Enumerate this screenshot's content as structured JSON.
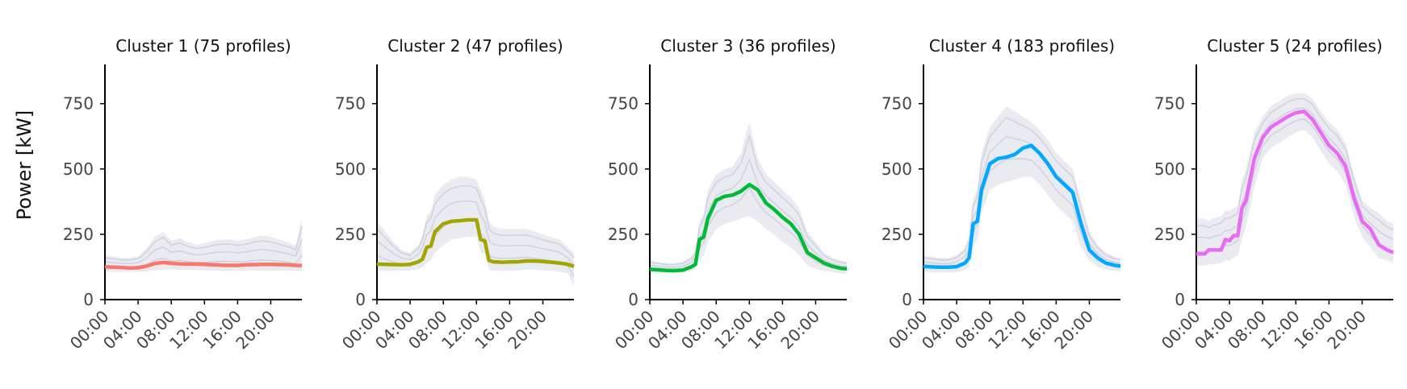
{
  "figure": {
    "ylabel": "Power [kW]"
  },
  "chart_data": [
    {
      "type": "line",
      "title": "Cluster 1 (75 profiles)",
      "color": "#f8766d",
      "x_ticks": [
        "00:00",
        "04:00",
        "08:00",
        "12:00",
        "16:00",
        "20:00"
      ],
      "y_ticks": [
        0,
        250,
        500,
        750
      ],
      "ylim": [
        0,
        900
      ],
      "xlim": [
        0,
        23.75
      ],
      "x_hours": [
        0,
        1,
        2,
        3,
        4,
        5,
        6,
        7,
        8,
        9,
        10,
        11,
        12,
        13,
        14,
        15,
        16,
        17,
        18,
        19,
        20,
        21,
        22,
        23,
        23.75
      ],
      "series": [
        {
          "values": [
            125,
            124,
            123,
            121,
            122,
            128,
            138,
            142,
            139,
            137,
            136,
            136,
            135,
            133,
            132,
            131,
            131,
            133,
            134,
            135,
            135,
            134,
            133,
            131,
            130
          ]
        }
      ],
      "background_band": {
        "lower": [
          105,
          105,
          105,
          105,
          106,
          108,
          112,
          115,
          115,
          114,
          113,
          113,
          112,
          111,
          110,
          110,
          110,
          110,
          111,
          111,
          111,
          111,
          110,
          110,
          109
        ],
        "upper": [
          170,
          165,
          160,
          160,
          165,
          195,
          240,
          260,
          225,
          235,
          220,
          210,
          215,
          225,
          230,
          230,
          225,
          230,
          240,
          245,
          240,
          230,
          220,
          205,
          310
        ]
      }
    },
    {
      "type": "line",
      "title": "Cluster 2 (47 profiles)",
      "color": "#a3a500",
      "x_ticks": [
        "00:00",
        "04:00",
        "08:00",
        "12:00",
        "16:00",
        "20:00"
      ],
      "y_ticks": [
        0,
        250,
        500,
        750
      ],
      "ylim": [
        0,
        900
      ],
      "xlim": [
        0,
        23.75
      ],
      "x_hours": [
        0,
        1,
        2,
        3,
        4,
        5,
        5.5,
        6,
        6.5,
        7,
        8,
        9,
        10,
        11,
        12,
        12.5,
        13,
        13.5,
        14,
        15,
        16,
        17,
        18,
        19,
        20,
        21,
        22,
        23,
        23.75
      ],
      "series": [
        {
          "values": [
            136,
            135,
            134,
            133,
            135,
            145,
            155,
            200,
            205,
            260,
            290,
            300,
            302,
            305,
            305,
            230,
            225,
            150,
            145,
            143,
            144,
            145,
            148,
            148,
            146,
            143,
            140,
            135,
            127
          ]
        }
      ],
      "background_band": {
        "lower": [
          110,
          110,
          110,
          110,
          112,
          118,
          122,
          140,
          150,
          180,
          210,
          230,
          235,
          240,
          240,
          180,
          175,
          115,
          110,
          110,
          110,
          112,
          115,
          115,
          112,
          110,
          108,
          100,
          50
        ],
        "upper": [
          300,
          260,
          220,
          190,
          180,
          210,
          250,
          320,
          340,
          400,
          440,
          460,
          470,
          470,
          460,
          420,
          380,
          300,
          280,
          270,
          270,
          270,
          270,
          260,
          250,
          240,
          230,
          200,
          180
        ]
      }
    },
    {
      "type": "line",
      "title": "Cluster 3 (36 profiles)",
      "color": "#00ba38",
      "x_ticks": [
        "00:00",
        "04:00",
        "08:00",
        "12:00",
        "16:00",
        "20:00"
      ],
      "y_ticks": [
        0,
        250,
        500,
        750
      ],
      "ylim": [
        0,
        900
      ],
      "xlim": [
        0,
        23.75
      ],
      "x_hours": [
        0,
        1,
        2,
        3,
        4,
        5,
        5.5,
        6,
        6.5,
        7,
        8,
        9,
        10,
        11,
        12,
        13,
        14,
        15,
        16,
        17,
        18,
        19,
        20,
        21,
        22,
        23,
        23.75
      ],
      "series": [
        {
          "values": [
            116,
            114,
            112,
            111,
            113,
            125,
            135,
            230,
            240,
            310,
            380,
            395,
            400,
            415,
            440,
            420,
            370,
            345,
            315,
            290,
            250,
            180,
            160,
            140,
            128,
            120,
            118
          ]
        }
      ],
      "background_band": {
        "lower": [
          100,
          100,
          100,
          100,
          102,
          110,
          118,
          150,
          170,
          220,
          270,
          290,
          300,
          310,
          320,
          300,
          270,
          250,
          220,
          200,
          170,
          130,
          118,
          110,
          105,
          100,
          100
        ],
        "upper": [
          150,
          145,
          140,
          140,
          145,
          165,
          190,
          300,
          330,
          420,
          480,
          500,
          510,
          560,
          680,
          540,
          480,
          450,
          420,
          390,
          350,
          260,
          220,
          180,
          160,
          150,
          145
        ]
      }
    },
    {
      "type": "line",
      "title": "Cluster 4 (183 profiles)",
      "color": "#00a9ff",
      "x_ticks": [
        "00:00",
        "04:00",
        "08:00",
        "12:00",
        "16:00",
        "20:00"
      ],
      "y_ticks": [
        0,
        250,
        500,
        750
      ],
      "ylim": [
        0,
        900
      ],
      "xlim": [
        0,
        23.75
      ],
      "x_hours": [
        0,
        1,
        2,
        3,
        4,
        5,
        5.5,
        6,
        6.5,
        7,
        8,
        9,
        10,
        11,
        12,
        13,
        14,
        15,
        16,
        17,
        18,
        19,
        20,
        21,
        22,
        23,
        23.75
      ],
      "series": [
        {
          "values": [
            127,
            125,
            124,
            124,
            126,
            140,
            160,
            290,
            300,
            420,
            520,
            540,
            545,
            555,
            580,
            590,
            560,
            520,
            470,
            440,
            410,
            290,
            190,
            160,
            140,
            132,
            128
          ]
        }
      ],
      "background_band": {
        "lower": [
          105,
          105,
          104,
          104,
          106,
          112,
          125,
          200,
          230,
          330,
          420,
          440,
          450,
          460,
          470,
          470,
          440,
          400,
          360,
          330,
          300,
          200,
          150,
          125,
          115,
          110,
          108
        ],
        "upper": [
          170,
          165,
          160,
          160,
          170,
          200,
          240,
          390,
          420,
          560,
          660,
          700,
          740,
          720,
          700,
          680,
          650,
          610,
          560,
          530,
          500,
          380,
          260,
          210,
          180,
          165,
          160
        ]
      }
    },
    {
      "type": "line",
      "title": "Cluster 5 (24 profiles)",
      "color": "#e76bf3",
      "x_ticks": [
        "00:00",
        "04:00",
        "08:00",
        "12:00",
        "16:00",
        "20:00"
      ],
      "y_ticks": [
        0,
        250,
        500,
        750
      ],
      "ylim": [
        0,
        900
      ],
      "xlim": [
        0,
        23.75
      ],
      "x_hours": [
        0,
        1,
        1.5,
        2,
        3,
        3.5,
        4,
        4.5,
        5,
        5.5,
        6,
        7,
        8,
        9,
        10,
        11,
        12,
        13,
        14,
        15,
        16,
        17,
        18,
        19,
        20,
        21,
        22,
        23,
        23.75
      ],
      "series": [
        {
          "values": [
            175,
            175,
            190,
            190,
            190,
            230,
            225,
            245,
            245,
            350,
            380,
            540,
            620,
            660,
            680,
            700,
            715,
            720,
            690,
            640,
            590,
            560,
            510,
            390,
            300,
            270,
            210,
            190,
            180
          ]
        }
      ],
      "background_band": {
        "lower": [
          130,
          130,
          135,
          135,
          140,
          150,
          150,
          160,
          170,
          230,
          280,
          430,
          540,
          580,
          600,
          620,
          640,
          650,
          620,
          570,
          520,
          490,
          440,
          320,
          240,
          200,
          160,
          150,
          140
        ],
        "upper": [
          310,
          310,
          300,
          310,
          320,
          340,
          340,
          350,
          360,
          460,
          500,
          640,
          700,
          740,
          760,
          780,
          790,
          790,
          770,
          720,
          680,
          650,
          600,
          480,
          380,
          350,
          330,
          300,
          290
        ]
      }
    }
  ]
}
